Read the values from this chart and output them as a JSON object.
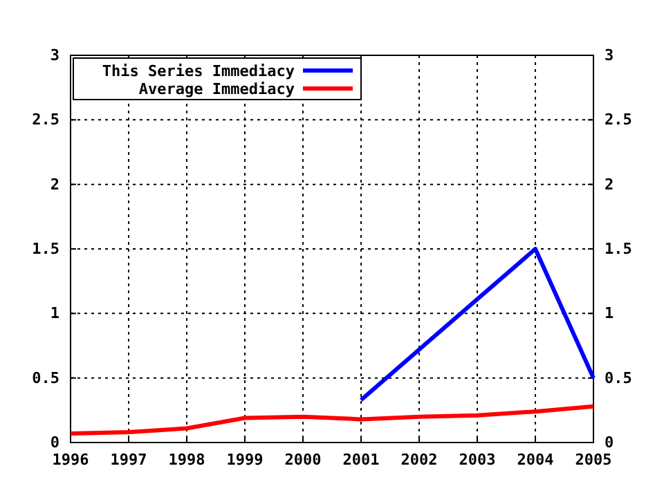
{
  "chart_data": {
    "type": "line",
    "x": [
      1996,
      1997,
      1998,
      1999,
      2000,
      2001,
      2002,
      2003,
      2004,
      2005
    ],
    "series": [
      {
        "name": "This Series Immediacy",
        "color": "#0000ff",
        "values": [
          null,
          null,
          null,
          null,
          null,
          0.33,
          0.72,
          1.11,
          1.5,
          0.5
        ]
      },
      {
        "name": "Average Immediacy",
        "color": "#ff0000",
        "values": [
          0.07,
          0.08,
          0.11,
          0.19,
          0.2,
          0.18,
          0.2,
          0.21,
          0.24,
          0.28
        ]
      }
    ],
    "xlim": [
      1996,
      2005
    ],
    "xticks": [
      1996,
      1997,
      1998,
      1999,
      2000,
      2001,
      2002,
      2003,
      2004,
      2005
    ],
    "ylim": [
      0,
      3
    ],
    "yticks": [
      0,
      0.5,
      1,
      1.5,
      2,
      2.5,
      3
    ],
    "y2lim": [
      0,
      3
    ],
    "y2ticks": [
      0,
      0.5,
      1,
      1.5,
      2,
      2.5,
      3
    ],
    "grid": true,
    "legend": "top left",
    "line_style": "solid",
    "marker": "none"
  }
}
